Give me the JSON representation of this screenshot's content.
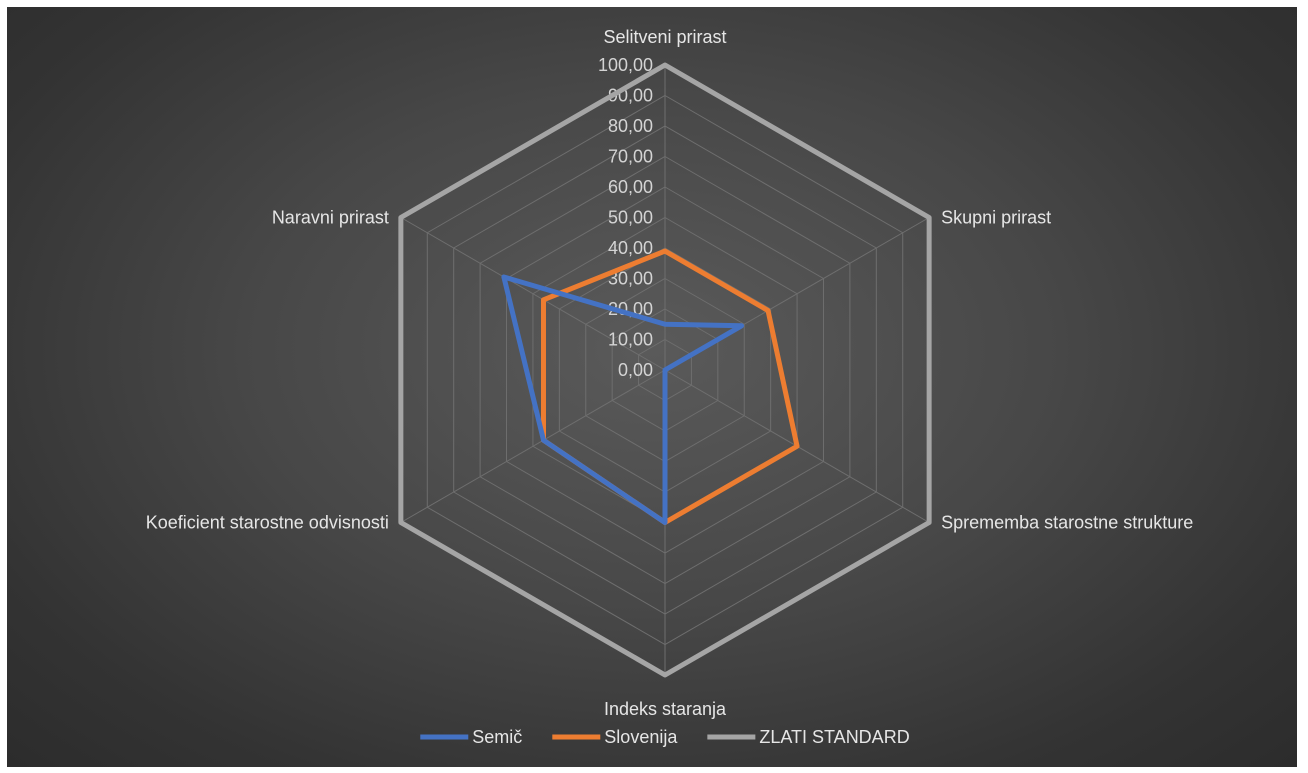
{
  "chart_data": {
    "type": "radar",
    "title": "",
    "categories": [
      "Selitveni prirast",
      "Skupni prirast",
      "Sprememba starostne strukture",
      "Indeks staranja",
      "Koeficient starostne odvisnosti",
      "Naravni prirast"
    ],
    "rlim": [
      0,
      100
    ],
    "ticks": [
      "0,00",
      "10,00",
      "20,00",
      "30,00",
      "40,00",
      "50,00",
      "60,00",
      "70,00",
      "80,00",
      "90,00",
      "100,00"
    ],
    "grid": true,
    "legend_position": "bottom",
    "series": [
      {
        "name": "Semič",
        "color": "#4472C4",
        "values": [
          15,
          29,
          0,
          50,
          46,
          61
        ]
      },
      {
        "name": "Slovenija",
        "color": "#ED7D31",
        "values": [
          39,
          39,
          50,
          50,
          46,
          46
        ]
      },
      {
        "name": "ZLATI STANDARD",
        "color": "#A5A5A5",
        "values": [
          100,
          100,
          100,
          100,
          100,
          100
        ]
      }
    ]
  }
}
